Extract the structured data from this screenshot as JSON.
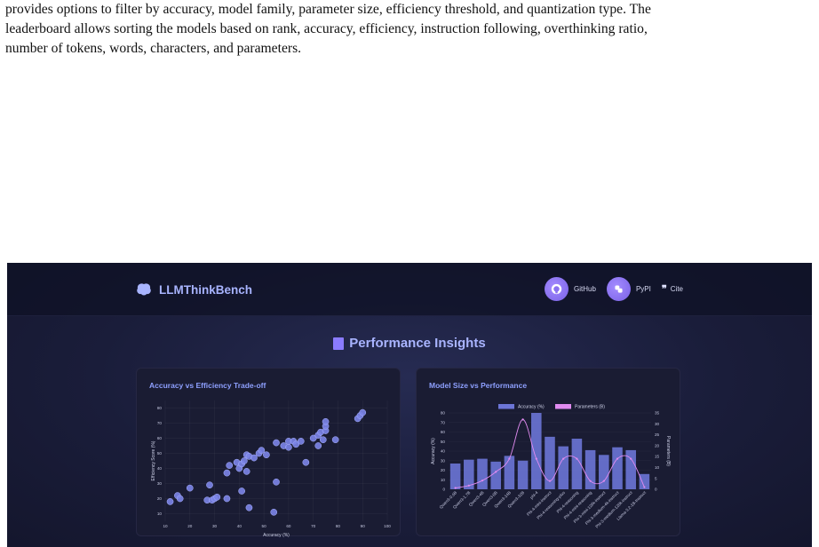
{
  "paper": {
    "lines": [
      "provides options to filter by accuracy, model family, parameter size, efficiency threshold, and quantization type. The",
      "leaderboard allows sorting the models based on rank, accuracy, efficiency, instruction following, overthinking ratio,",
      "number of tokens, words, characters, and parameters."
    ]
  },
  "app": {
    "brand": "LLMThinkBench",
    "nav": {
      "github": "GitHub",
      "pypi": "PyPI",
      "cite": "Cite",
      "cite_glyph": "❞"
    },
    "section_title": "Performance Insights"
  },
  "colors": {
    "accent": "#7c85e8",
    "pink": "#e08bf0",
    "title": "#a9b4ff"
  },
  "chart_data": [
    {
      "type": "scatter",
      "title": "Accuracy vs Efficiency Trade-off",
      "xlabel": "Accuracy (%)",
      "ylabel": "Efficiency Score (%)",
      "xlim": [
        10,
        100
      ],
      "ylim": [
        5,
        85
      ],
      "xticks": [
        10,
        20,
        30,
        40,
        50,
        60,
        70,
        80,
        90,
        100
      ],
      "yticks": [
        10,
        20,
        30,
        40,
        50,
        60,
        70,
        80
      ],
      "grid": true,
      "points": [
        {
          "x": 12,
          "y": 18
        },
        {
          "x": 15,
          "y": 22
        },
        {
          "x": 16,
          "y": 20
        },
        {
          "x": 20,
          "y": 27
        },
        {
          "x": 27,
          "y": 19
        },
        {
          "x": 29,
          "y": 19
        },
        {
          "x": 30,
          "y": 20
        },
        {
          "x": 31,
          "y": 21
        },
        {
          "x": 28,
          "y": 29
        },
        {
          "x": 35,
          "y": 20
        },
        {
          "x": 35,
          "y": 37
        },
        {
          "x": 36,
          "y": 42
        },
        {
          "x": 39,
          "y": 44
        },
        {
          "x": 40,
          "y": 40
        },
        {
          "x": 41,
          "y": 25
        },
        {
          "x": 41,
          "y": 43
        },
        {
          "x": 42,
          "y": 45
        },
        {
          "x": 43,
          "y": 49
        },
        {
          "x": 43,
          "y": 38
        },
        {
          "x": 44,
          "y": 48
        },
        {
          "x": 46,
          "y": 47
        },
        {
          "x": 44,
          "y": 14
        },
        {
          "x": 48,
          "y": 50
        },
        {
          "x": 49,
          "y": 52
        },
        {
          "x": 51,
          "y": 49
        },
        {
          "x": 54,
          "y": 11
        },
        {
          "x": 55,
          "y": 31
        },
        {
          "x": 55,
          "y": 57
        },
        {
          "x": 58,
          "y": 55
        },
        {
          "x": 60,
          "y": 54
        },
        {
          "x": 60,
          "y": 58
        },
        {
          "x": 62,
          "y": 58
        },
        {
          "x": 63,
          "y": 56
        },
        {
          "x": 65,
          "y": 58
        },
        {
          "x": 67,
          "y": 44
        },
        {
          "x": 70,
          "y": 60
        },
        {
          "x": 72,
          "y": 55
        },
        {
          "x": 72,
          "y": 62
        },
        {
          "x": 73,
          "y": 64
        },
        {
          "x": 74,
          "y": 59
        },
        {
          "x": 75,
          "y": 65
        },
        {
          "x": 75,
          "y": 68
        },
        {
          "x": 75,
          "y": 71
        },
        {
          "x": 79,
          "y": 59
        },
        {
          "x": 88,
          "y": 73
        },
        {
          "x": 89,
          "y": 75
        },
        {
          "x": 90,
          "y": 77
        }
      ]
    },
    {
      "type": "bar",
      "title": "Model Size vs Performance",
      "ylabel": "Accuracy (%)",
      "y2label": "Parameters (B)",
      "ylim": [
        0,
        80
      ],
      "y2lim": [
        0,
        35
      ],
      "yticks": [
        0,
        10,
        20,
        30,
        40,
        50,
        60,
        70,
        80
      ],
      "y2ticks": [
        0,
        5,
        10,
        15,
        20,
        25,
        30,
        35
      ],
      "legend_position": "top",
      "categories": [
        "Qwen3-0.6B",
        "Qwen3-1.7B",
        "Qwen3-4B",
        "Qwen3-8B",
        "Qwen3-14B",
        "Qwen3-32B",
        "phi-4",
        "Phi-4-mini-instruct",
        "Phi-4-reasoning-plus",
        "Phi-4-reasoning",
        "Phi-4-mini-reasoning",
        "Phi-3-mini-128k-instruct",
        "Phi-3-medium-4k-instruct",
        "Phi-3-medium-128k-instruct",
        "Llama-3.2-1B-Instruct"
      ],
      "series": [
        {
          "name": "Accuracy (%)",
          "kind": "bar",
          "axis": "left",
          "values": [
            27,
            31,
            32,
            29,
            35,
            30,
            80,
            55,
            45,
            53,
            41,
            36,
            44,
            41,
            16
          ]
        },
        {
          "name": "Parameters (B)",
          "kind": "line",
          "axis": "right",
          "values": [
            0.6,
            1.7,
            4,
            8,
            14,
            32,
            14,
            3.8,
            14,
            14,
            3.8,
            3.8,
            14,
            14,
            1
          ]
        }
      ]
    }
  ]
}
